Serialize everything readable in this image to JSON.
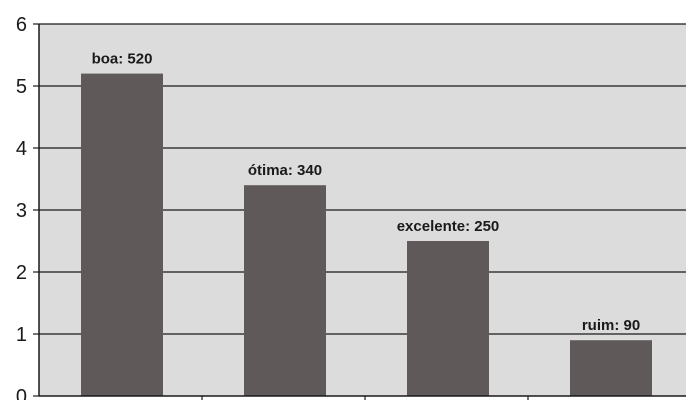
{
  "chart_data": {
    "type": "bar",
    "categories": [
      "boa",
      "ótima",
      "excelente",
      "ruim"
    ],
    "values": [
      5.2,
      3.4,
      2.5,
      0.9
    ],
    "data_labels": [
      "boa: 520",
      "ótima: 340",
      "excelente: 250",
      "ruim: 90"
    ],
    "title": "",
    "xlabel": "",
    "ylabel": "",
    "ylim": [
      0,
      6
    ],
    "yticks": [
      "0",
      "1",
      "2",
      "3",
      "4",
      "5",
      "6"
    ],
    "grid": true,
    "legend": "none",
    "colors": {
      "plot_background": "#dcdcdc",
      "bar": "#5f5a59",
      "gridline": "#1a1a1a",
      "axis": "#1a1a1a"
    }
  }
}
